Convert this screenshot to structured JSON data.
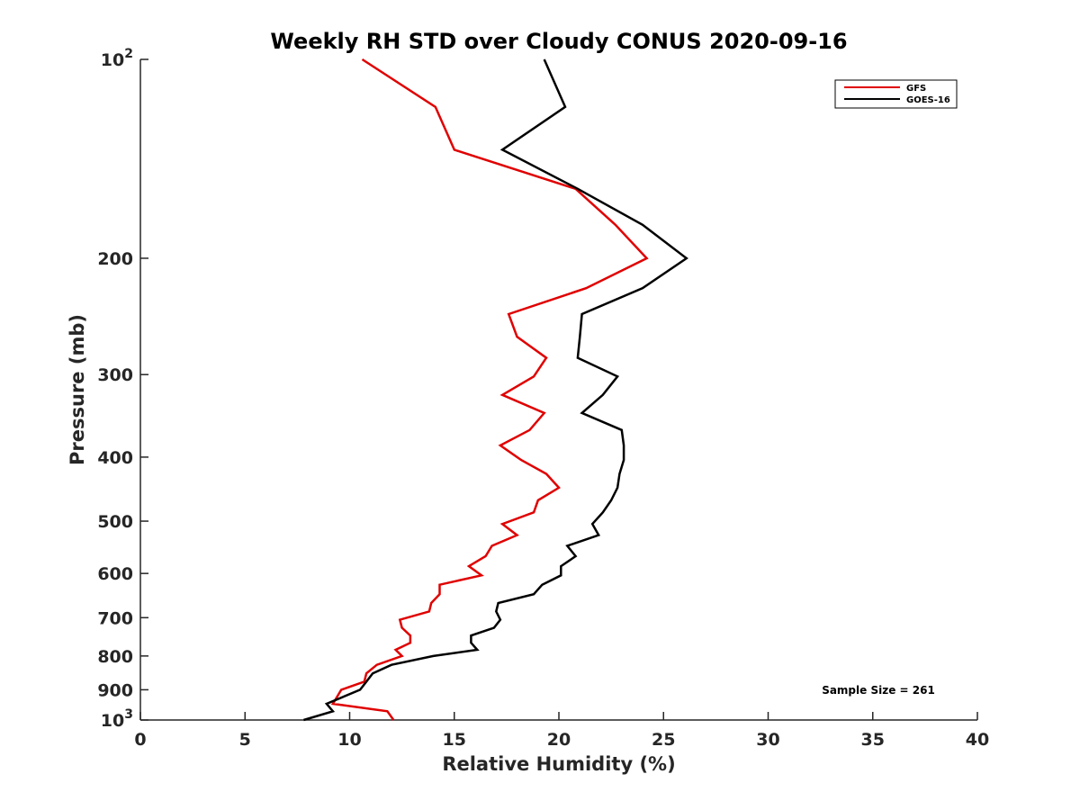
{
  "chart_data": {
    "type": "line",
    "title": "Weekly RH STD over Cloudy CONUS 2020-09-16",
    "xlabel": "Relative Humidity (%)",
    "ylabel": "Pressure (mb)",
    "xlim": [
      0,
      40
    ],
    "ylim": [
      1000,
      100
    ],
    "y_scale": "log",
    "y_reversed": true,
    "grid": false,
    "legend_position": "top-right",
    "x_ticks": [
      {
        "value": 0,
        "label": "0"
      },
      {
        "value": 5,
        "label": "5"
      },
      {
        "value": 10,
        "label": "10"
      },
      {
        "value": 15,
        "label": "15"
      },
      {
        "value": 20,
        "label": "20"
      },
      {
        "value": 25,
        "label": "25"
      },
      {
        "value": 30,
        "label": "30"
      },
      {
        "value": 35,
        "label": "35"
      },
      {
        "value": 40,
        "label": "40"
      }
    ],
    "y_ticks": [
      {
        "value": 100,
        "base": "10",
        "exp": "2"
      },
      {
        "value": 200,
        "label": "200"
      },
      {
        "value": 300,
        "label": "300"
      },
      {
        "value": 400,
        "label": "400"
      },
      {
        "value": 500,
        "label": "500"
      },
      {
        "value": 600,
        "label": "600"
      },
      {
        "value": 700,
        "label": "700"
      },
      {
        "value": 800,
        "label": "800"
      },
      {
        "value": 900,
        "label": "900"
      },
      {
        "value": 1000,
        "base": "10",
        "exp": "3"
      }
    ],
    "series": [
      {
        "name": "GFS",
        "color": "#e00000",
        "x": [
          10.6,
          14.1,
          15.0,
          20.8,
          22.7,
          24.2,
          21.3,
          17.6,
          18.0,
          19.4,
          18.8,
          17.3,
          19.3,
          18.6,
          17.2,
          18.2,
          19.4,
          20.0,
          19.0,
          18.8,
          17.3,
          18.0,
          16.8,
          16.5,
          15.7,
          16.3,
          14.3,
          14.3,
          13.9,
          13.8,
          12.4,
          12.5,
          12.9,
          12.9,
          12.2,
          12.5,
          11.3,
          10.8,
          10.7,
          9.6,
          9.2,
          11.8,
          12.1
        ],
        "y": [
          100,
          118,
          137,
          157,
          178,
          200,
          222,
          243,
          263,
          283,
          302,
          322,
          343,
          364,
          384,
          404,
          424,
          445,
          465,
          485,
          505,
          525,
          545,
          565,
          585,
          604,
          624,
          645,
          665,
          685,
          705,
          725,
          745,
          764,
          783,
          800,
          825,
          850,
          875,
          900,
          945,
          970,
          1000
        ]
      },
      {
        "name": "GOES-16",
        "color": "#000000",
        "x": [
          19.3,
          20.3,
          17.3,
          20.9,
          24.0,
          26.1,
          24.0,
          21.1,
          21.0,
          20.9,
          22.8,
          22.1,
          21.1,
          23.0,
          23.1,
          23.1,
          22.9,
          22.8,
          22.5,
          22.1,
          21.6,
          21.9,
          20.4,
          20.8,
          20.1,
          20.1,
          19.2,
          18.8,
          17.1,
          17.0,
          17.2,
          16.9,
          15.8,
          15.8,
          16.1,
          14.0,
          12.0,
          11.1,
          10.8,
          10.5,
          8.9,
          9.2,
          7.8
        ],
        "y": [
          100,
          118,
          137,
          157,
          178,
          200,
          222,
          243,
          263,
          283,
          302,
          322,
          343,
          364,
          384,
          404,
          424,
          445,
          465,
          485,
          505,
          525,
          545,
          565,
          585,
          604,
          624,
          645,
          665,
          685,
          705,
          725,
          745,
          764,
          783,
          800,
          825,
          850,
          875,
          900,
          945,
          970,
          1000
        ]
      }
    ],
    "annotations": [
      {
        "text": "Sample Size = 261",
        "position": "bottom-right"
      }
    ],
    "colors": {
      "axis": "#262626",
      "background": "#ffffff"
    }
  }
}
